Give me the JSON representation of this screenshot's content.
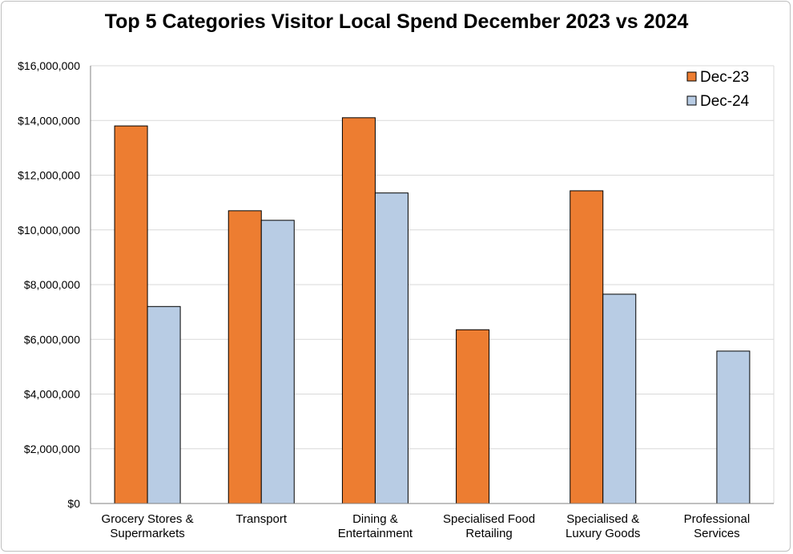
{
  "chart_data": {
    "type": "bar",
    "title": "Top 5 Categories Visitor Local Spend December 2023 vs 2024",
    "xlabel": "",
    "ylabel": "",
    "ylim": [
      0,
      16000000
    ],
    "yticks": [
      "$0",
      "$2,000,000",
      "$4,000,000",
      "$6,000,000",
      "$8,000,000",
      "$10,000,000",
      "$12,000,000",
      "$14,000,000",
      "$16,000,000"
    ],
    "categories": [
      [
        "Grocery Stores &",
        "Supermarkets"
      ],
      [
        "Transport"
      ],
      [
        "Dining &",
        "Entertainment"
      ],
      [
        "Specialised Food",
        "Retailing"
      ],
      [
        "Specialised &",
        "Luxury Goods"
      ],
      [
        "Professional",
        "Services"
      ]
    ],
    "series": [
      {
        "name": "Dec-23",
        "color": "#ed7d31",
        "values": [
          13800000,
          10700000,
          14100000,
          6350000,
          11430000,
          null
        ]
      },
      {
        "name": "Dec-24",
        "color": "#b8cce4",
        "values": [
          7200000,
          10350000,
          11350000,
          null,
          7650000,
          5570000
        ]
      }
    ],
    "grid": true,
    "legend": "top-right"
  }
}
